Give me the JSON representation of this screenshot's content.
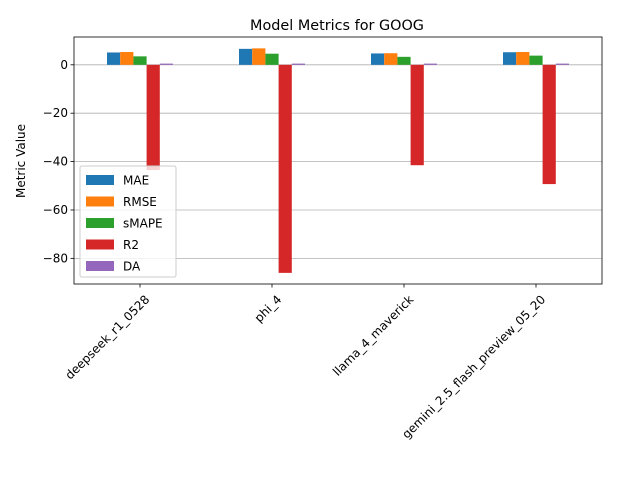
{
  "chart_data": {
    "type": "bar",
    "title": "Model Metrics for GOOG",
    "xlabel": "",
    "ylabel": "Metric Value",
    "categories": [
      "deepseek_r1_0528",
      "phi_4",
      "llama_4_maverick",
      "gemini_2.5_flash_preview_05_20"
    ],
    "series": [
      {
        "name": "MAE",
        "color": "#1f77b4",
        "values": [
          5.1,
          6.6,
          4.7,
          5.2
        ]
      },
      {
        "name": "RMSE",
        "color": "#ff7f0e",
        "values": [
          5.3,
          6.8,
          4.8,
          5.3
        ]
      },
      {
        "name": "sMAPE",
        "color": "#2ca02c",
        "values": [
          3.5,
          4.6,
          3.3,
          3.8
        ]
      },
      {
        "name": "R2",
        "color": "#d62728",
        "values": [
          -43.5,
          -86.0,
          -41.5,
          -49.3
        ]
      },
      {
        "name": "DA",
        "color": "#9467bd",
        "values": [
          0.5,
          0.5,
          0.5,
          0.5
        ]
      }
    ],
    "ylim": [
      -90.6,
      11.5
    ],
    "yticks": [
      0,
      -20,
      -40,
      -60,
      -80
    ],
    "ytick_labels": [
      "0",
      "−20",
      "−40",
      "−60",
      "−80"
    ],
    "grid": "y-major",
    "legend_position": "lower-left"
  }
}
